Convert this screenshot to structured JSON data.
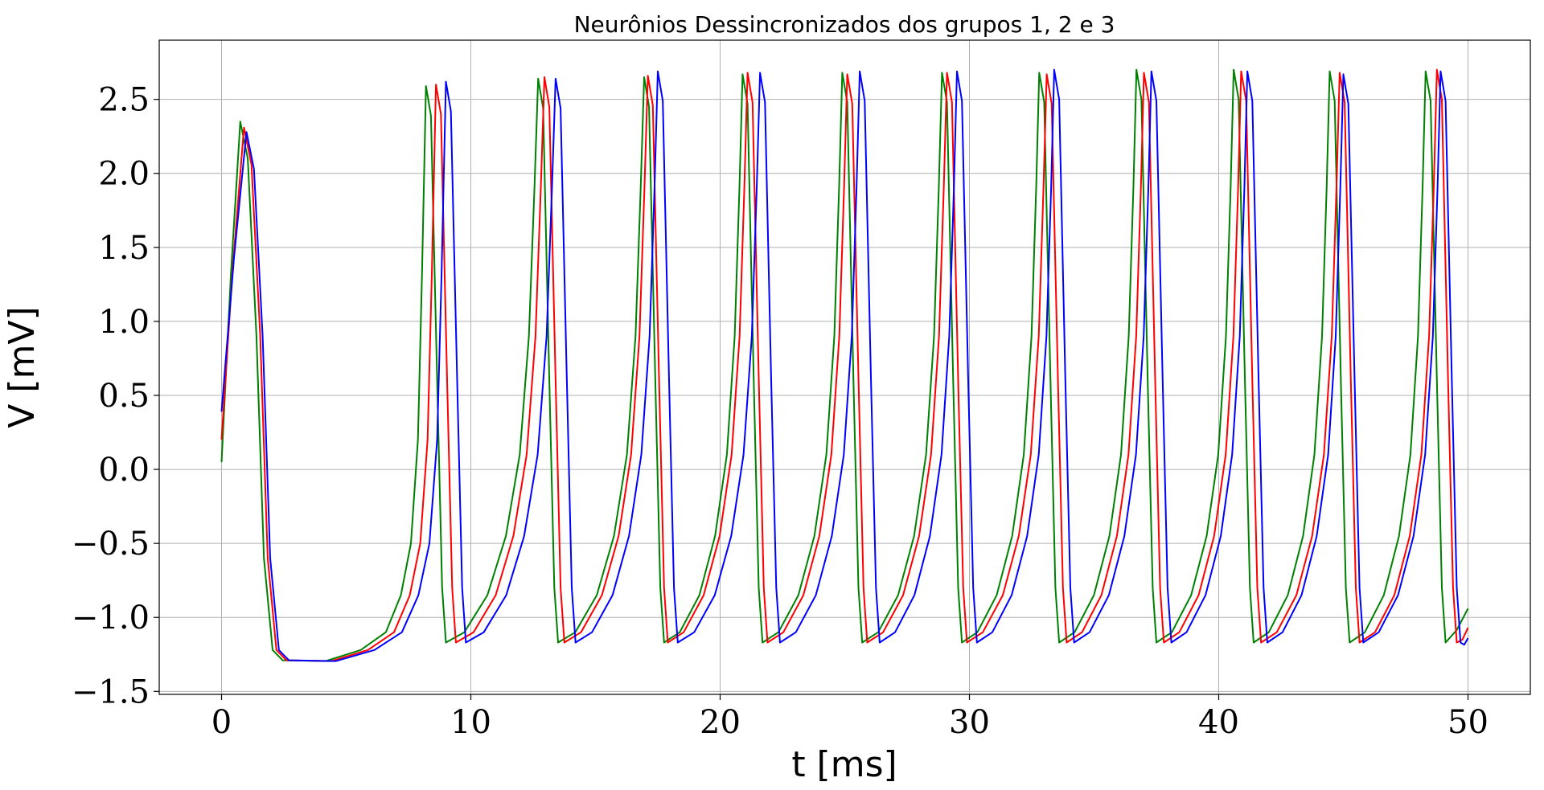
{
  "chart_data": {
    "type": "line",
    "title": "Neurônios Dessincronizados dos grupos 1, 2 e 3",
    "xlabel": "t [ms]",
    "ylabel": "V [mV]",
    "xlim": [
      -2.5,
      52.5
    ],
    "ylim": [
      -1.52,
      2.9
    ],
    "grid": true,
    "legend": "none",
    "x_ticks": [
      0,
      10,
      20,
      30,
      40,
      50
    ],
    "x_tick_labels": [
      "0",
      "10",
      "20",
      "30",
      "40",
      "50"
    ],
    "y_ticks": [
      -1.5,
      -1.0,
      -0.5,
      0.0,
      0.5,
      1.0,
      1.5,
      2.0,
      2.5
    ],
    "y_tick_labels": [
      "−1.5",
      "−1.0",
      "−0.5",
      "0.0",
      "0.5",
      "1.0",
      "1.5",
      "2.0",
      "2.5"
    ],
    "waveform": {
      "resting_value": -1.29,
      "initial_spike_peak": 2.33,
      "typical_trough": -1.17,
      "typical_peak": 2.67
    },
    "series": [
      {
        "color": "#008000",
        "start_value": 0.05,
        "first_peak_time": 0.75,
        "first_peak_value": 2.35,
        "spike_peaks": [
          {
            "t": 8.2,
            "v": 2.59
          },
          {
            "t": 12.7,
            "v": 2.64
          },
          {
            "t": 16.95,
            "v": 2.65
          },
          {
            "t": 20.9,
            "v": 2.67
          },
          {
            "t": 24.9,
            "v": 2.68
          },
          {
            "t": 28.9,
            "v": 2.68
          },
          {
            "t": 32.8,
            "v": 2.68
          },
          {
            "t": 36.7,
            "v": 2.7
          },
          {
            "t": 40.6,
            "v": 2.7
          },
          {
            "t": 44.45,
            "v": 2.69
          },
          {
            "t": 48.3,
            "v": 2.69
          }
        ],
        "end_value": -0.94
      },
      {
        "color": "#ff0000",
        "start_value": 0.2,
        "first_peak_time": 0.9,
        "first_peak_value": 2.31,
        "spike_peaks": [
          {
            "t": 8.6,
            "v": 2.6
          },
          {
            "t": 12.95,
            "v": 2.65
          },
          {
            "t": 17.1,
            "v": 2.66
          },
          {
            "t": 21.1,
            "v": 2.68
          },
          {
            "t": 25.1,
            "v": 2.67
          },
          {
            "t": 29.1,
            "v": 2.68
          },
          {
            "t": 33.1,
            "v": 2.67
          },
          {
            "t": 37.0,
            "v": 2.68
          },
          {
            "t": 40.9,
            "v": 2.69
          },
          {
            "t": 44.85,
            "v": 2.68
          },
          {
            "t": 48.75,
            "v": 2.7
          }
        ],
        "end_value": -1.07
      },
      {
        "color": "#0000ff",
        "start_value": 0.39,
        "first_peak_time": 1.0,
        "first_peak_value": 2.28,
        "spike_peaks": [
          {
            "t": 9.0,
            "v": 2.62
          },
          {
            "t": 13.4,
            "v": 2.64
          },
          {
            "t": 17.5,
            "v": 2.69
          },
          {
            "t": 21.6,
            "v": 2.68
          },
          {
            "t": 25.6,
            "v": 2.69
          },
          {
            "t": 29.5,
            "v": 2.69
          },
          {
            "t": 33.4,
            "v": 2.7
          },
          {
            "t": 37.3,
            "v": 2.69
          },
          {
            "t": 41.15,
            "v": 2.69
          },
          {
            "t": 45.0,
            "v": 2.67
          },
          {
            "t": 48.9,
            "v": 2.69
          }
        ],
        "end_value": -1.14
      }
    ]
  }
}
